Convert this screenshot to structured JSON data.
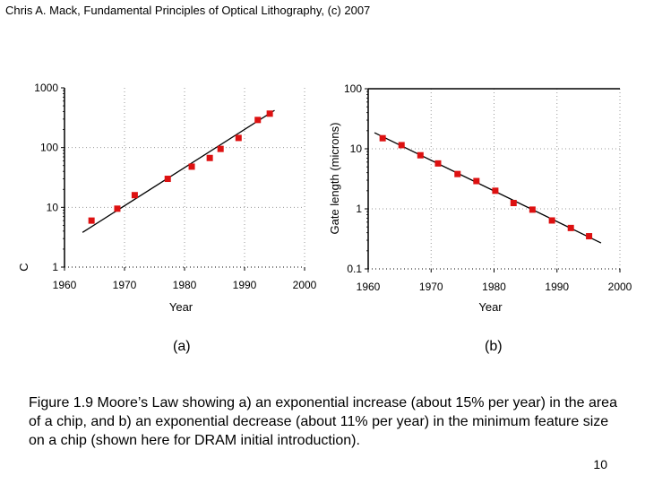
{
  "header": {
    "title": "Chris A. Mack, Fundamental Principles of Optical Lithography, (c) 2007"
  },
  "panel_labels": {
    "a": "(a)",
    "b": "(b)"
  },
  "caption": "Figure 1.9 Moore’s Law showing a) an exponential increase (about 15% per year) in the area of a chip, and b) an exponential decrease (about 11% per year) in the minimum feature size on a chip (shown here for DRAM initial introduction).",
  "page_number": "10",
  "colors": {
    "marker": "#dd1111",
    "line": "#000000",
    "grid": "#999999"
  },
  "chart_data": [
    {
      "type": "scatter",
      "title": "",
      "xlabel": "Year",
      "ylabel": "C",
      "yscale": "log",
      "xlim": [
        1960,
        2000
      ],
      "ylim": [
        1,
        1000
      ],
      "x_ticks": [
        1960,
        1970,
        1980,
        1990,
        2000
      ],
      "x_tick_labels": [
        "1960",
        "1970",
        "1980",
        "1990",
        "2000"
      ],
      "y_ticks": [
        1,
        10,
        100,
        1000
      ],
      "y_tick_labels": [
        "1",
        "10",
        "100",
        "1000"
      ],
      "points": {
        "x": [
          1964.5,
          1968.8,
          1971.7,
          1977.2,
          1981.2,
          1984.2,
          1986.0,
          1989.0,
          1992.2,
          1994.2
        ],
        "y": [
          6,
          9.5,
          16,
          30,
          48,
          67,
          95,
          145,
          290,
          370
        ]
      },
      "trend_line": {
        "x": [
          1963,
          1995
        ],
        "y": [
          3.8,
          420
        ]
      }
    },
    {
      "type": "scatter",
      "title": "",
      "xlabel": "Year",
      "ylabel": "Gate length (microns)",
      "yscale": "log",
      "xlim": [
        1960,
        2000
      ],
      "ylim": [
        0.1,
        100
      ],
      "x_ticks": [
        1960,
        1970,
        1980,
        1990,
        2000
      ],
      "x_tick_labels": [
        "1960",
        "1970",
        "1980",
        "1990",
        "2000"
      ],
      "y_ticks": [
        0.1,
        1,
        10,
        100
      ],
      "y_tick_labels": [
        "0.1",
        "1",
        "10",
        "100"
      ],
      "points": {
        "x": [
          1962.3,
          1965.3,
          1968.3,
          1971.1,
          1974.2,
          1977.2,
          1980.2,
          1983.1,
          1986.1,
          1989.2,
          1992.2,
          1995.1
        ],
        "y": [
          15,
          11.5,
          7.8,
          5.7,
          3.8,
          2.9,
          2.0,
          1.25,
          0.97,
          0.64,
          0.48,
          0.35
        ]
      },
      "trend_line": {
        "x": [
          1961,
          1997
        ],
        "y": [
          18.5,
          0.27
        ]
      }
    }
  ]
}
